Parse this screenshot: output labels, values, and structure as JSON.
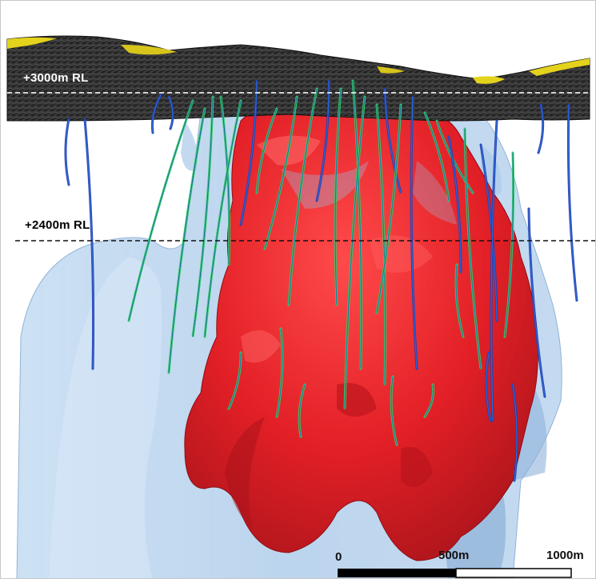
{
  "levels": {
    "upper": "+3000m  RL",
    "lower": "+2400m  RL"
  },
  "scale_bar": {
    "labels": [
      "0",
      "500m",
      "1000m"
    ]
  },
  "colors": {
    "surface_rock": "#2b2b2b",
    "surface_highlight": "#e4d21c",
    "envelope": "#9fc3e6",
    "orebody": "#e01f25",
    "drillhole_primary": "#1f3fb5",
    "drillhole_accent": "#2fd06a"
  }
}
